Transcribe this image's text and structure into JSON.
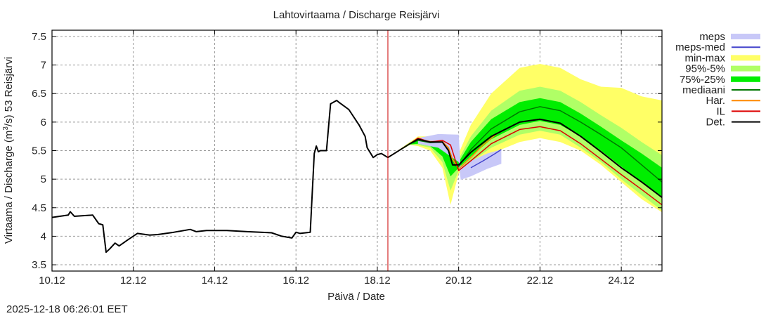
{
  "chart_data": {
    "type": "line",
    "title": "Lahtovirtaama / Discharge  Reisjärvi",
    "xlabel": "Päivä / Date",
    "ylabel_main": "Virtaama / Discharge (m",
    "ylabel_sup": "3",
    "ylabel_tail": "/s)  53 Reisjärvi",
    "xlim": [
      0,
      15.0
    ],
    "ylim": [
      3.39,
      7.61
    ],
    "x_unit": "days since 10.12",
    "x_ticks": [
      {
        "x": 0,
        "label": "10.12"
      },
      {
        "x": 2,
        "label": "12.12"
      },
      {
        "x": 4,
        "label": "14.12"
      },
      {
        "x": 6,
        "label": "16.12"
      },
      {
        "x": 8,
        "label": "18.12"
      },
      {
        "x": 10,
        "label": "20.12"
      },
      {
        "x": 12,
        "label": "22.12"
      },
      {
        "x": 14,
        "label": "24.12"
      }
    ],
    "y_ticks": [
      {
        "y": 3.5,
        "label": "3.5"
      },
      {
        "y": 4,
        "label": "4"
      },
      {
        "y": 4.5,
        "label": "4.5"
      },
      {
        "y": 5,
        "label": "5"
      },
      {
        "y": 5.5,
        "label": "5.5"
      },
      {
        "y": 6,
        "label": "6"
      },
      {
        "y": 6.5,
        "label": "6.5"
      },
      {
        "y": 7,
        "label": "7"
      },
      {
        "y": 7.5,
        "label": "7.5"
      }
    ],
    "grid": true,
    "now_line_x": 8.26,
    "legend_position": "right-outside",
    "bands": [
      {
        "name": "meps",
        "color": "#c8c8f8",
        "x": [
          9.0,
          9.5,
          10.0,
          10.05,
          10.3,
          10.7,
          11.05
        ],
        "upper": [
          5.72,
          5.79,
          5.78,
          5.2,
          5.32,
          5.45,
          5.52
        ],
        "lower": [
          5.62,
          5.55,
          5.3,
          4.99,
          5.05,
          5.18,
          5.27
        ]
      },
      {
        "name": "min-max",
        "color": "#ffff66",
        "x": [
          8.26,
          8.8,
          9.0,
          9.3,
          9.6,
          9.8,
          10.0,
          10.3,
          10.8,
          11.5,
          12.0,
          12.5,
          13.0,
          13.5,
          14.0,
          14.5,
          15.0
        ],
        "upper": [
          5.38,
          5.65,
          5.75,
          5.75,
          5.72,
          5.6,
          5.45,
          5.95,
          6.5,
          6.95,
          7.02,
          6.95,
          6.75,
          6.62,
          6.6,
          6.45,
          6.38
        ],
        "lower": [
          5.38,
          5.6,
          5.58,
          5.5,
          5.2,
          4.55,
          5.1,
          5.2,
          5.45,
          5.65,
          5.72,
          5.65,
          5.5,
          5.25,
          4.95,
          4.65,
          4.42
        ]
      },
      {
        "name": "95%-5%",
        "color": "#b0ff66",
        "x": [
          8.26,
          8.8,
          9.0,
          9.3,
          9.6,
          9.8,
          10.0,
          10.3,
          10.8,
          11.5,
          12.0,
          12.5,
          13.0,
          13.5,
          14.0,
          14.5,
          15.0
        ],
        "upper": [
          5.38,
          5.64,
          5.72,
          5.7,
          5.68,
          5.55,
          5.35,
          5.75,
          6.2,
          6.55,
          6.62,
          6.55,
          6.35,
          6.12,
          5.9,
          5.65,
          5.42
        ],
        "lower": [
          5.38,
          5.6,
          5.6,
          5.55,
          5.3,
          4.8,
          5.15,
          5.3,
          5.55,
          5.78,
          5.85,
          5.78,
          5.55,
          5.3,
          5.0,
          4.72,
          4.45
        ]
      },
      {
        "name": "75%-25%",
        "color": "#00ee00",
        "x": [
          8.26,
          8.8,
          9.0,
          9.3,
          9.6,
          9.8,
          10.0,
          10.3,
          10.8,
          11.5,
          12.0,
          12.5,
          13.0,
          13.5,
          14.0,
          14.5,
          15.0
        ],
        "upper": [
          5.38,
          5.63,
          5.7,
          5.68,
          5.66,
          5.5,
          5.3,
          5.65,
          6.05,
          6.35,
          6.42,
          6.35,
          6.15,
          5.92,
          5.68,
          5.45,
          5.2
        ],
        "lower": [
          5.38,
          5.61,
          5.62,
          5.58,
          5.4,
          5.05,
          5.2,
          5.4,
          5.7,
          5.95,
          6.02,
          5.95,
          5.75,
          5.5,
          5.22,
          4.95,
          4.7
        ]
      }
    ],
    "series": [
      {
        "name": "meps-med",
        "color": "#4444cc",
        "x": [
          10.3,
          10.6,
          10.9,
          11.05
        ],
        "y": [
          5.2,
          5.32,
          5.45,
          5.52
        ]
      },
      {
        "name": "mediaani",
        "color": "#007700",
        "x": [
          8.26,
          8.8,
          9.0,
          9.3,
          9.6,
          9.75,
          9.85,
          10.0,
          10.3,
          10.8,
          11.5,
          12.0,
          12.5,
          13.0,
          13.5,
          14.0,
          14.5,
          15.0
        ],
        "y": [
          5.38,
          5.62,
          5.68,
          5.64,
          5.65,
          5.55,
          5.25,
          5.22,
          5.52,
          5.88,
          6.18,
          6.27,
          6.2,
          6.0,
          5.78,
          5.55,
          5.25,
          4.95
        ]
      },
      {
        "name": "Har.",
        "color": "#ff8800",
        "x": [
          8.26,
          8.8,
          9.0,
          9.3,
          9.6,
          9.75,
          9.85,
          10.0,
          10.3,
          10.6,
          10.95
        ],
        "y": [
          5.38,
          5.62,
          5.7,
          5.66,
          5.66,
          5.55,
          5.35,
          5.18,
          5.38,
          5.6,
          5.8
        ]
      },
      {
        "name": "IL",
        "color": "#dd0000",
        "x": [
          8.26,
          8.8,
          9.0,
          9.3,
          9.6,
          9.8,
          10.0,
          10.3,
          10.8,
          11.5,
          12.0,
          12.5,
          13.0,
          13.5,
          14.0,
          14.5,
          15.0
        ],
        "y": [
          5.38,
          5.62,
          5.72,
          5.65,
          5.68,
          5.6,
          5.15,
          5.32,
          5.62,
          5.87,
          5.92,
          5.85,
          5.62,
          5.35,
          5.08,
          4.82,
          4.55
        ]
      },
      {
        "name": "Det.",
        "color": "#000000",
        "x": [
          0,
          0.4,
          0.45,
          0.55,
          1.0,
          1.15,
          1.25,
          1.33,
          1.42,
          1.55,
          1.65,
          1.75,
          1.85,
          2.1,
          2.4,
          2.6,
          3.0,
          3.4,
          3.55,
          3.8,
          4.3,
          4.8,
          5.4,
          5.65,
          5.9,
          6.0,
          6.1,
          6.35,
          6.45,
          6.5,
          6.55,
          6.6,
          6.75,
          6.85,
          7.0,
          7.05,
          7.3,
          7.55,
          7.7,
          7.75,
          7.9,
          8.0,
          8.1,
          8.26,
          8.8,
          9.0,
          9.3,
          9.6,
          9.75,
          9.85,
          10.0,
          10.3,
          10.8,
          11.5,
          12.0,
          12.5,
          13.0,
          13.5,
          14.0,
          14.5,
          15.0
        ],
        "y": [
          4.33,
          4.37,
          4.43,
          4.35,
          4.37,
          4.22,
          4.2,
          3.72,
          3.78,
          3.88,
          3.83,
          3.88,
          3.93,
          4.05,
          4.02,
          4.03,
          4.07,
          4.12,
          4.08,
          4.1,
          4.1,
          4.08,
          4.06,
          4.0,
          3.97,
          4.07,
          4.05,
          4.07,
          5.45,
          5.58,
          5.48,
          5.5,
          5.5,
          6.32,
          6.38,
          6.35,
          6.22,
          5.95,
          5.75,
          5.55,
          5.38,
          5.43,
          5.45,
          5.38,
          5.62,
          5.7,
          5.65,
          5.65,
          5.5,
          5.25,
          5.25,
          5.47,
          5.75,
          6.0,
          6.05,
          5.98,
          5.75,
          5.48,
          5.2,
          4.95,
          4.68
        ]
      }
    ],
    "legend": [
      {
        "label": "meps",
        "kind": "band",
        "color": "#c8c8f8"
      },
      {
        "label": "meps-med",
        "kind": "line",
        "color": "#4444cc"
      },
      {
        "label": "min-max",
        "kind": "band",
        "color": "#ffff66"
      },
      {
        "label": "95%-5%",
        "kind": "band",
        "color": "#b0ff66"
      },
      {
        "label": "75%-25%",
        "kind": "band",
        "color": "#00ee00"
      },
      {
        "label": "mediaani",
        "kind": "line",
        "color": "#007700"
      },
      {
        "label": "Har.",
        "kind": "line",
        "color": "#ff8800"
      },
      {
        "label": "IL",
        "kind": "line",
        "color": "#dd0000"
      },
      {
        "label": "Det.",
        "kind": "line",
        "color": "#000000"
      }
    ]
  },
  "footer": {
    "timestamp": "2025-12-18 06:26:01 EET"
  }
}
